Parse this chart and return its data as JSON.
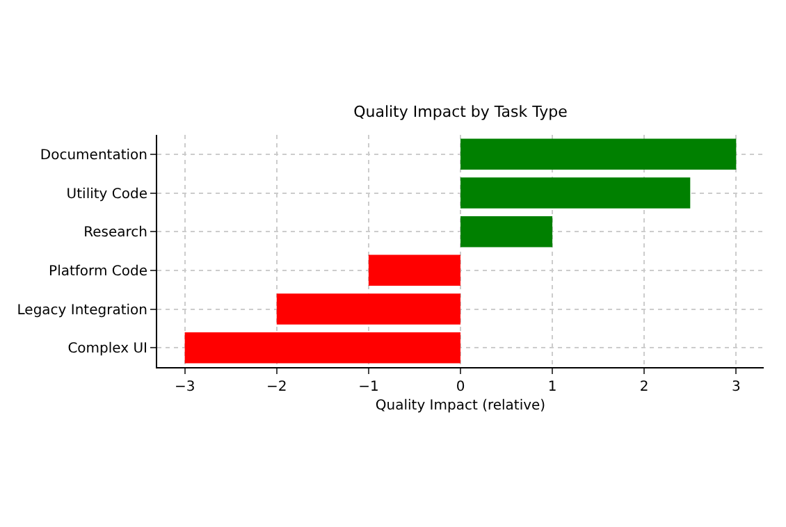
{
  "chart_data": {
    "type": "bar",
    "orientation": "horizontal",
    "title": "Quality Impact by Task Type",
    "xlabel": "Quality Impact (relative)",
    "categories": [
      "Documentation",
      "Utility Code",
      "Research",
      "Platform Code",
      "Legacy Integration",
      "Complex UI"
    ],
    "values": [
      3,
      2.5,
      1,
      -1,
      -2,
      -3
    ],
    "colors": [
      "#008000",
      "#008000",
      "#008000",
      "#ff0000",
      "#ff0000",
      "#ff0000"
    ],
    "xlim": [
      -3.3,
      3.3
    ],
    "xticks": [
      {
        "value": -3,
        "label": "−3"
      },
      {
        "value": -2,
        "label": "−2"
      },
      {
        "value": -1,
        "label": "−1"
      },
      0,
      1,
      2,
      3
    ],
    "grid": true
  }
}
